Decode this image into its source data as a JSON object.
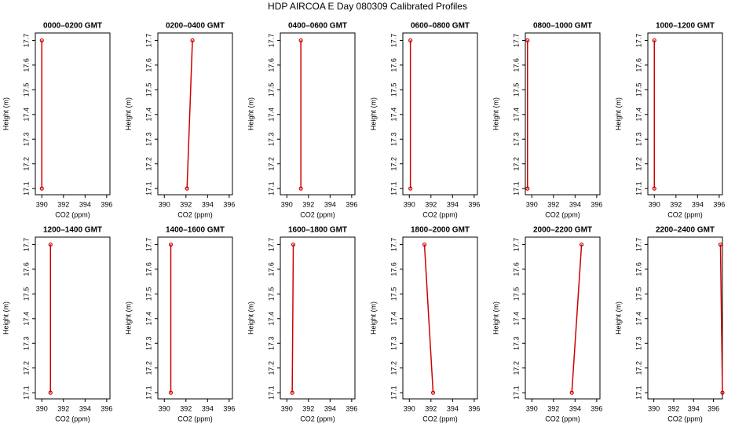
{
  "title": "HDP AIRCOA E  Day 080309  Calibrated Profiles",
  "chart_data": [
    {
      "type": "line",
      "title": "0000–0200 GMT",
      "xlabel": "CO2 (ppm)",
      "ylabel": "Height (m)",
      "color": "#d00000",
      "x": [
        390.0,
        390.0
      ],
      "values": [
        17.1,
        17.7
      ],
      "xlim": [
        389.4,
        396.3
      ],
      "ylim": [
        17.075,
        17.73
      ],
      "xticks": [
        390,
        392,
        394,
        396
      ],
      "yticks": [
        17.1,
        17.2,
        17.3,
        17.4,
        17.5,
        17.6,
        17.7
      ]
    },
    {
      "type": "line",
      "title": "0200–0400 GMT",
      "xlabel": "CO2 (ppm)",
      "ylabel": "Height (m)",
      "color": "#d00000",
      "x": [
        392.1,
        392.6
      ],
      "values": [
        17.1,
        17.7
      ],
      "xlim": [
        389.4,
        396.3
      ],
      "ylim": [
        17.075,
        17.73
      ],
      "xticks": [
        390,
        392,
        394,
        396
      ],
      "yticks": [
        17.1,
        17.2,
        17.3,
        17.4,
        17.5,
        17.6,
        17.7
      ]
    },
    {
      "type": "line",
      "title": "0400–0600 GMT",
      "xlabel": "CO2 (ppm)",
      "ylabel": "Height (m)",
      "color": "#d00000",
      "x": [
        391.3,
        391.3
      ],
      "values": [
        17.1,
        17.7
      ],
      "xlim": [
        389.4,
        396.3
      ],
      "ylim": [
        17.075,
        17.73
      ],
      "xticks": [
        390,
        392,
        394,
        396
      ],
      "yticks": [
        17.1,
        17.2,
        17.3,
        17.4,
        17.5,
        17.6,
        17.7
      ]
    },
    {
      "type": "line",
      "title": "0600–0800 GMT",
      "xlabel": "CO2 (ppm)",
      "ylabel": "Height (m)",
      "color": "#d00000",
      "x": [
        390.1,
        390.1
      ],
      "values": [
        17.1,
        17.7
      ],
      "xlim": [
        389.4,
        396.3
      ],
      "ylim": [
        17.075,
        17.73
      ],
      "xticks": [
        390,
        392,
        394,
        396
      ],
      "yticks": [
        17.1,
        17.2,
        17.3,
        17.4,
        17.5,
        17.6,
        17.7
      ]
    },
    {
      "type": "line",
      "title": "0800–1000 GMT",
      "xlabel": "CO2 (ppm)",
      "ylabel": "Height (m)",
      "color": "#d00000",
      "x": [
        389.6,
        389.6
      ],
      "values": [
        17.1,
        17.7
      ],
      "xlim": [
        389.4,
        396.3
      ],
      "ylim": [
        17.075,
        17.73
      ],
      "xticks": [
        390,
        392,
        394,
        396
      ],
      "yticks": [
        17.1,
        17.2,
        17.3,
        17.4,
        17.5,
        17.6,
        17.7
      ]
    },
    {
      "type": "line",
      "title": "1000–1200 GMT",
      "xlabel": "CO2 (ppm)",
      "ylabel": "Height (m)",
      "color": "#d00000",
      "x": [
        390.0,
        390.0
      ],
      "values": [
        17.1,
        17.7
      ],
      "xlim": [
        389.4,
        396.3
      ],
      "ylim": [
        17.075,
        17.73
      ],
      "xticks": [
        390,
        392,
        394,
        396
      ],
      "yticks": [
        17.1,
        17.2,
        17.3,
        17.4,
        17.5,
        17.6,
        17.7
      ]
    },
    {
      "type": "line",
      "title": "1200–1400 GMT",
      "xlabel": "CO2 (ppm)",
      "ylabel": "Height (m)",
      "color": "#d00000",
      "x": [
        390.8,
        390.8
      ],
      "values": [
        17.1,
        17.7
      ],
      "xlim": [
        389.4,
        396.3
      ],
      "ylim": [
        17.075,
        17.73
      ],
      "xticks": [
        390,
        392,
        394,
        396
      ],
      "yticks": [
        17.1,
        17.2,
        17.3,
        17.4,
        17.5,
        17.6,
        17.7
      ]
    },
    {
      "type": "line",
      "title": "1400–1600 GMT",
      "xlabel": "CO2 (ppm)",
      "ylabel": "Height (m)",
      "color": "#d00000",
      "x": [
        390.6,
        390.6
      ],
      "values": [
        17.1,
        17.7
      ],
      "xlim": [
        389.4,
        396.3
      ],
      "ylim": [
        17.075,
        17.73
      ],
      "xticks": [
        390,
        392,
        394,
        396
      ],
      "yticks": [
        17.1,
        17.2,
        17.3,
        17.4,
        17.5,
        17.6,
        17.7
      ]
    },
    {
      "type": "line",
      "title": "1600–1800 GMT",
      "xlabel": "CO2 (ppm)",
      "ylabel": "Height (m)",
      "color": "#d00000",
      "x": [
        390.5,
        390.6
      ],
      "values": [
        17.1,
        17.7
      ],
      "xlim": [
        389.4,
        396.3
      ],
      "ylim": [
        17.075,
        17.73
      ],
      "xticks": [
        390,
        392,
        394,
        396
      ],
      "yticks": [
        17.1,
        17.2,
        17.3,
        17.4,
        17.5,
        17.6,
        17.7
      ]
    },
    {
      "type": "line",
      "title": "1800–2000 GMT",
      "xlabel": "CO2 (ppm)",
      "ylabel": "Height (m)",
      "color": "#d00000",
      "x": [
        392.2,
        391.4
      ],
      "values": [
        17.1,
        17.7
      ],
      "xlim": [
        389.4,
        396.3
      ],
      "ylim": [
        17.075,
        17.73
      ],
      "xticks": [
        390,
        392,
        394,
        396
      ],
      "yticks": [
        17.1,
        17.2,
        17.3,
        17.4,
        17.5,
        17.6,
        17.7
      ]
    },
    {
      "type": "line",
      "title": "2000–2200 GMT",
      "xlabel": "CO2 (ppm)",
      "ylabel": "Height (m)",
      "color": "#d00000",
      "x": [
        393.7,
        394.6
      ],
      "values": [
        17.1,
        17.7
      ],
      "xlim": [
        389.4,
        396.3
      ],
      "ylim": [
        17.075,
        17.73
      ],
      "xticks": [
        390,
        392,
        394,
        396
      ],
      "yticks": [
        17.1,
        17.2,
        17.3,
        17.4,
        17.5,
        17.6,
        17.7
      ]
    },
    {
      "type": "line",
      "title": "2200–2400 GMT",
      "xlabel": "CO2 (ppm)",
      "ylabel": "Height (m)",
      "color": "#d00000",
      "x": [
        396.9,
        396.7
      ],
      "values": [
        17.1,
        17.7
      ],
      "xlim": [
        389.4,
        396.9
      ],
      "ylim": [
        17.075,
        17.73
      ],
      "xticks": [
        390,
        392,
        394,
        396
      ],
      "yticks": [
        17.1,
        17.2,
        17.3,
        17.4,
        17.5,
        17.6,
        17.7
      ]
    }
  ]
}
